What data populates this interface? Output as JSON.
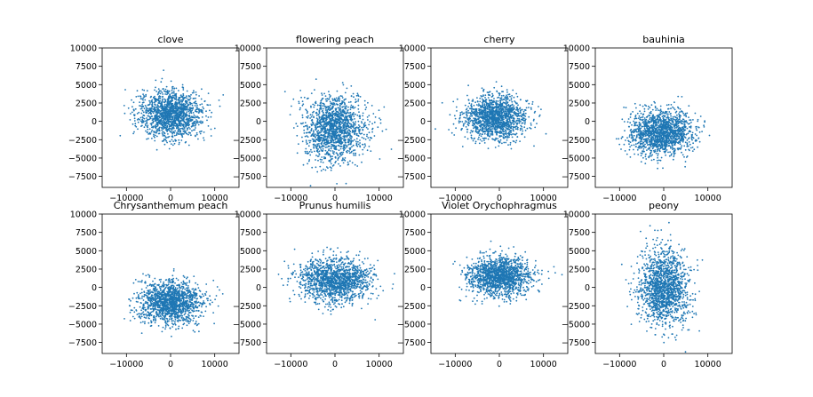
{
  "chart_data": [
    {
      "type": "scatter",
      "title": "clove",
      "center": [
        0,
        1000
      ],
      "spread": [
        3500,
        1600
      ],
      "n_points": 1500,
      "xlim": [
        -15500,
        15500
      ],
      "ylim": [
        -9000,
        10000
      ],
      "xticks": [
        -10000,
        0,
        10000
      ],
      "yticks": [
        -7500,
        -5000,
        -2500,
        0,
        2500,
        5000,
        7500,
        10000
      ],
      "marker_color": "#1f77b4"
    },
    {
      "type": "scatter",
      "title": "flowering peach",
      "center": [
        0,
        -1000
      ],
      "spread": [
        3500,
        2200
      ],
      "n_points": 1500,
      "xlim": [
        -15500,
        15500
      ],
      "ylim": [
        -9000,
        10000
      ],
      "xticks": [
        -10000,
        0,
        10000
      ],
      "yticks": [
        -7500,
        -5000,
        -2500,
        0,
        2500,
        5000,
        7500,
        10000
      ],
      "marker_color": "#1f77b4"
    },
    {
      "type": "scatter",
      "title": "cherry",
      "center": [
        -1000,
        500
      ],
      "spread": [
        3500,
        1500
      ],
      "n_points": 1500,
      "xlim": [
        -15500,
        15500
      ],
      "ylim": [
        -9000,
        10000
      ],
      "xticks": [
        -10000,
        0,
        10000
      ],
      "yticks": [
        -7500,
        -5000,
        -2500,
        0,
        2500,
        5000,
        7500,
        10000
      ],
      "marker_color": "#1f77b4"
    },
    {
      "type": "scatter",
      "title": "bauhinia",
      "center": [
        -500,
        -1500
      ],
      "spread": [
        3500,
        1500
      ],
      "n_points": 1500,
      "xlim": [
        -15500,
        15500
      ],
      "ylim": [
        -9000,
        10000
      ],
      "xticks": [
        -10000,
        0,
        10000
      ],
      "yticks": [
        -7500,
        -5000,
        -2500,
        0,
        2500,
        5000,
        7500,
        10000
      ],
      "marker_color": "#1f77b4"
    },
    {
      "type": "scatter",
      "title": "Chrysanthemum peach",
      "center": [
        0,
        -2000
      ],
      "spread": [
        3500,
        1500
      ],
      "n_points": 1500,
      "xlim": [
        -15500,
        15500
      ],
      "ylim": [
        -9000,
        10000
      ],
      "xticks": [
        -10000,
        0,
        10000
      ],
      "yticks": [
        -7500,
        -5000,
        -2500,
        0,
        2500,
        5000,
        7500,
        10000
      ],
      "marker_color": "#1f77b4"
    },
    {
      "type": "scatter",
      "title": "Prunus humilis",
      "center": [
        0,
        1000
      ],
      "spread": [
        4000,
        1500
      ],
      "n_points": 1500,
      "xlim": [
        -15500,
        15500
      ],
      "ylim": [
        -9000,
        10000
      ],
      "xticks": [
        -10000,
        0,
        10000
      ],
      "yticks": [
        -7500,
        -5000,
        -2500,
        0,
        2500,
        5000,
        7500,
        10000
      ],
      "marker_color": "#1f77b4"
    },
    {
      "type": "scatter",
      "title": "Violet Orychophragmus",
      "center": [
        0,
        1500
      ],
      "spread": [
        3500,
        1300
      ],
      "n_points": 1500,
      "xlim": [
        -15500,
        15500
      ],
      "ylim": [
        -9000,
        10000
      ],
      "xticks": [
        -10000,
        0,
        10000
      ],
      "yticks": [
        -7500,
        -5000,
        -2500,
        0,
        2500,
        5000,
        7500,
        10000
      ],
      "marker_color": "#1f77b4"
    },
    {
      "type": "scatter",
      "title": "peony",
      "center": [
        0,
        0
      ],
      "spread": [
        2800,
        2600
      ],
      "n_points": 1500,
      "xlim": [
        -15500,
        15500
      ],
      "ylim": [
        -9000,
        10000
      ],
      "xticks": [
        -10000,
        0,
        10000
      ],
      "yticks": [
        -7500,
        -5000,
        -2500,
        0,
        2500,
        5000,
        7500,
        10000
      ],
      "marker_color": "#1f77b4"
    }
  ]
}
